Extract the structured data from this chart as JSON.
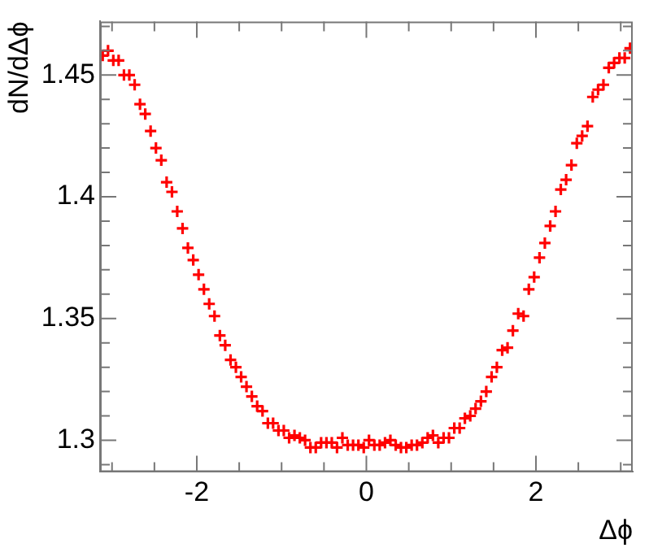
{
  "chart_data": {
    "type": "scatter",
    "xlabel": "Δϕ",
    "ylabel": "dN/dΔϕ",
    "marker": "cross",
    "grid": false,
    "legend": false,
    "xlim": [
      -3.1416,
      3.1416
    ],
    "ylim": [
      1.287,
      1.472
    ],
    "xticks": [
      {
        "value": -3,
        "label": null
      },
      {
        "value": -2.5,
        "label": null
      },
      -2,
      {
        "value": -1.5,
        "label": null
      },
      {
        "value": -1,
        "label": null
      },
      {
        "value": -0.5,
        "label": null
      },
      0,
      {
        "value": 0.5,
        "label": null
      },
      {
        "value": 1,
        "label": null
      },
      {
        "value": 1.5,
        "label": null
      },
      2,
      {
        "value": 2.5,
        "label": null
      },
      {
        "value": 3,
        "label": null
      }
    ],
    "yticks": [
      {
        "value": 1.29,
        "label": null
      },
      1.3,
      {
        "value": 1.31,
        "label": null
      },
      {
        "value": 1.32,
        "label": null
      },
      {
        "value": 1.33,
        "label": null
      },
      {
        "value": 1.34,
        "label": null
      },
      1.35,
      {
        "value": 1.36,
        "label": null
      },
      {
        "value": 1.37,
        "label": null
      },
      {
        "value": 1.38,
        "label": null
      },
      {
        "value": 1.39,
        "label": null
      },
      1.4,
      {
        "value": 1.41,
        "label": null
      },
      {
        "value": 1.42,
        "label": null
      },
      {
        "value": 1.43,
        "label": null
      },
      {
        "value": 1.44,
        "label": null
      },
      1.45,
      {
        "value": 1.46,
        "label": null
      },
      {
        "value": 1.47,
        "label": null
      }
    ],
    "series": [
      {
        "color": "#ff0000",
        "x": [
          -3.11,
          -3.047,
          -2.985,
          -2.922,
          -2.859,
          -2.796,
          -2.733,
          -2.67,
          -2.608,
          -2.545,
          -2.482,
          -2.419,
          -2.356,
          -2.293,
          -2.231,
          -2.168,
          -2.105,
          -2.042,
          -1.979,
          -1.916,
          -1.854,
          -1.791,
          -1.728,
          -1.665,
          -1.602,
          -1.539,
          -1.477,
          -1.414,
          -1.351,
          -1.288,
          -1.225,
          -1.162,
          -1.1,
          -1.037,
          -0.974,
          -0.911,
          -0.848,
          -0.785,
          -0.723,
          -0.66,
          -0.597,
          -0.534,
          -0.471,
          -0.408,
          -0.346,
          -0.283,
          -0.22,
          -0.157,
          -0.094,
          -0.031,
          0.031,
          0.094,
          0.157,
          0.22,
          0.283,
          0.346,
          0.408,
          0.471,
          0.534,
          0.597,
          0.66,
          0.723,
          0.785,
          0.848,
          0.911,
          0.974,
          1.037,
          1.1,
          1.162,
          1.225,
          1.288,
          1.351,
          1.414,
          1.477,
          1.539,
          1.602,
          1.665,
          1.728,
          1.791,
          1.854,
          1.916,
          1.979,
          2.042,
          2.105,
          2.168,
          2.231,
          2.293,
          2.356,
          2.419,
          2.482,
          2.545,
          2.608,
          2.67,
          2.733,
          2.796,
          2.859,
          2.922,
          2.985,
          3.047,
          3.11
        ],
        "values": [
          1.458,
          1.46,
          1.456,
          1.456,
          1.45,
          1.45,
          1.446,
          1.438,
          1.434,
          1.427,
          1.42,
          1.415,
          1.406,
          1.402,
          1.394,
          1.387,
          1.379,
          1.374,
          1.368,
          1.362,
          1.356,
          1.351,
          1.343,
          1.339,
          1.333,
          1.33,
          1.326,
          1.322,
          1.318,
          1.314,
          1.312,
          1.307,
          1.307,
          1.304,
          1.304,
          1.301,
          1.302,
          1.301,
          1.3,
          1.297,
          1.297,
          1.299,
          1.299,
          1.299,
          1.297,
          1.301,
          1.298,
          1.298,
          1.298,
          1.297,
          1.3,
          1.298,
          1.298,
          1.299,
          1.3,
          1.298,
          1.297,
          1.297,
          1.298,
          1.298,
          1.299,
          1.301,
          1.302,
          1.299,
          1.301,
          1.301,
          1.305,
          1.305,
          1.309,
          1.31,
          1.313,
          1.316,
          1.32,
          1.326,
          1.33,
          1.337,
          1.338,
          1.345,
          1.352,
          1.351,
          1.362,
          1.367,
          1.375,
          1.381,
          1.388,
          1.394,
          1.403,
          1.407,
          1.413,
          1.422,
          1.425,
          1.429,
          1.441,
          1.444,
          1.446,
          1.453,
          1.455,
          1.457,
          1.457,
          1.461
        ]
      }
    ]
  }
}
